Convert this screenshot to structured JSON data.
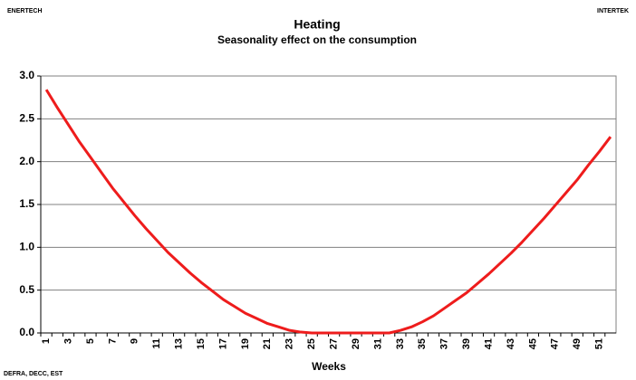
{
  "chart_data": {
    "type": "line",
    "title": "Heating",
    "subtitle": "Seasonality effect on the consumption",
    "top_left_label": "ENERTECH",
    "top_right_label": "INTERTEK",
    "source": "DEFRA, DECC, EST",
    "x_label": "Weeks",
    "categories": [
      "1",
      null,
      "3",
      null,
      "5",
      null,
      "7",
      null,
      "9",
      null,
      "11",
      null,
      "13",
      null,
      "15",
      null,
      "17",
      null,
      "19",
      null,
      "21",
      null,
      "23",
      null,
      "25",
      null,
      "27",
      null,
      "29",
      null,
      "31",
      null,
      "33",
      null,
      "35",
      null,
      "37",
      null,
      "39",
      null,
      "41",
      null,
      "43",
      null,
      "45",
      null,
      "47",
      null,
      "49",
      null,
      "51",
      null
    ],
    "values": [
      2.84,
      2.63,
      2.43,
      2.23,
      2.05,
      1.87,
      1.69,
      1.53,
      1.37,
      1.22,
      1.08,
      0.94,
      0.82,
      0.7,
      0.59,
      0.49,
      0.39,
      0.31,
      0.23,
      0.17,
      0.11,
      0.07,
      0.03,
      0.01,
      0,
      0,
      0,
      0,
      0,
      0,
      0,
      0,
      0.03,
      0.07,
      0.13,
      0.2,
      0.29,
      0.38,
      0.47,
      0.58,
      0.69,
      0.81,
      0.93,
      1.06,
      1.2,
      1.34,
      1.49,
      1.64,
      1.79,
      1.96,
      2.12,
      2.29
    ],
    "color": "#ee1c1c",
    "ylim": [
      0,
      3
    ],
    "yticks": [
      {
        "value": 0,
        "label": "0.0"
      },
      {
        "value": 0.5,
        "label": "0.5"
      },
      {
        "value": 1,
        "label": "1.0"
      },
      {
        "value": 1.5,
        "label": "1.5"
      },
      {
        "value": 2,
        "label": "2.0"
      },
      {
        "value": 2.5,
        "label": "2.5"
      },
      {
        "value": 3,
        "label": "3.0"
      }
    ],
    "grid": true
  }
}
